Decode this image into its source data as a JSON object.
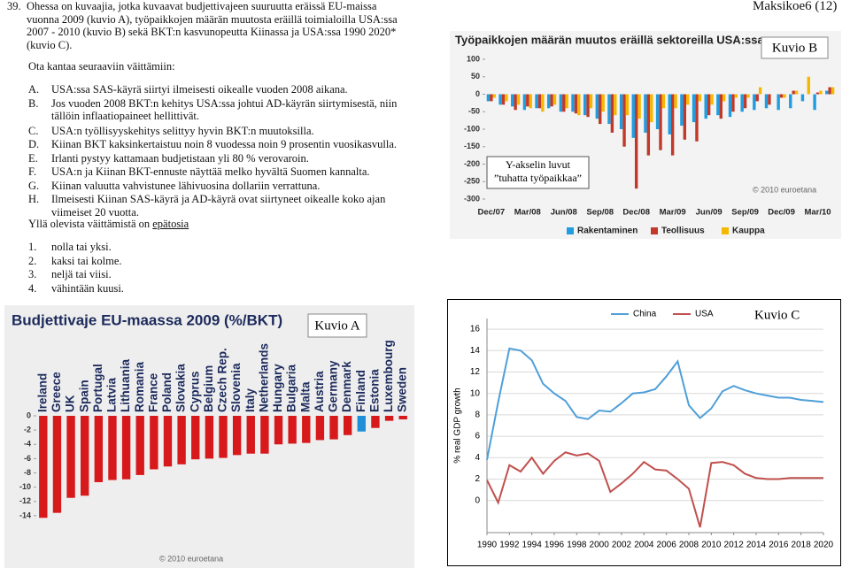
{
  "header": {
    "number": "39.",
    "exam": "Maksikoe6 (12)"
  },
  "question": "Ohessa on kuvaajia, jotka kuvaavat budjettivajeen suuruutta eräissä EU-maissa vuonna 2009 (kuvio A), työpaikkojen määrän muutosta eräillä toimialoilla USA:ssa 2007 - 2010 (kuvio B) sekä BKT:n kasvunopeutta Kiinassa ja USA:ssa 1990 2020* (kuvio C).",
  "instruction": "Ota kantaa seuraaviin väittämiin:",
  "statements": [
    {
      "letter": "A.",
      "text": "USA:ssa SAS-käyrä siirtyi ilmeisesti oikealle vuoden 2008 aikana."
    },
    {
      "letter": "B.",
      "text": "Jos vuoden 2008 BKT:n kehitys USA:ssa johtui AD-käyrän siirtymisestä, niin tällöin inflaatiopaineet hellittivät."
    },
    {
      "letter": "C.",
      "text": "USA:n työllisyyskehitys selittyy hyvin BKT:n muutoksilla."
    },
    {
      "letter": "D.",
      "text": "Kiinan BKT kaksinkertaistuu noin 8 vuodessa noin 9 prosentin vuosikasvulla."
    },
    {
      "letter": "E.",
      "text": "Irlanti pystyy kattamaan budjetistaan yli 80 % verovaroin."
    },
    {
      "letter": "F.",
      "text": "USA:n ja Kiinan BKT-ennuste näyttää melko hyvältä Suomen kannalta."
    },
    {
      "letter": "G.",
      "text": "Kiinan valuutta vahvistunee lähivuosina dollariin verrattuna."
    },
    {
      "letter": "H.",
      "text": "Ilmeisesti Kiinan SAS-käyrä ja AD-käyrä ovat siirtyneet oikealle koko ajan viimeiset 20 vuotta."
    }
  ],
  "prompt": "Yllä olevista väittämistä on",
  "prompt_emphasis": "epätosia",
  "answers": [
    {
      "number": "1.",
      "text": "nolla tai yksi."
    },
    {
      "number": "2.",
      "text": "kaksi tai kolme."
    },
    {
      "number": "3.",
      "text": "neljä tai viisi."
    },
    {
      "number": "4.",
      "text": "vähintään kuusi."
    }
  ],
  "chart_data": [
    {
      "type": "bar",
      "title": "Budjettivaje EU-maassa 2009 (%/BKT)",
      "label": "Kuvio A",
      "watermark": "© 2010 euroetana",
      "categories": [
        "Ireland",
        "Greece",
        "UK",
        "Spain",
        "Portugal",
        "Latvia",
        "Lithuania",
        "Romania",
        "France",
        "Poland",
        "Slovakia",
        "Cyprus",
        "Belgium",
        "Czech Rep.",
        "Slovenia",
        "Italy",
        "Netherlands",
        "Hungary",
        "Bulgaria",
        "Malta",
        "Austria",
        "Germany",
        "Denmark",
        "Finland",
        "Estonia",
        "Luxembourg",
        "Sweden"
      ],
      "values": [
        -14.3,
        -13.6,
        -11.5,
        -11.2,
        -9.3,
        -9.0,
        -8.9,
        -8.3,
        -7.5,
        -7.1,
        -6.8,
        -6.1,
        -6.0,
        -5.9,
        -5.5,
        -5.3,
        -5.3,
        -4.0,
        -3.9,
        -3.8,
        -3.4,
        -3.3,
        -2.7,
        -2.2,
        -1.7,
        -0.7,
        -0.5
      ],
      "colors": [
        "#d7191c",
        "#d7191c",
        "#d7191c",
        "#d7191c",
        "#d7191c",
        "#d7191c",
        "#d7191c",
        "#d7191c",
        "#d7191c",
        "#d7191c",
        "#d7191c",
        "#d7191c",
        "#d7191c",
        "#d7191c",
        "#d7191c",
        "#d7191c",
        "#d7191c",
        "#d7191c",
        "#d7191c",
        "#d7191c",
        "#d7191c",
        "#d7191c",
        "#d7191c",
        "#1f8fd8",
        "#d7191c",
        "#d7191c",
        "#d7191c"
      ],
      "ylim": [
        -16,
        0
      ],
      "yticks": [
        0,
        -2,
        -4,
        -6,
        -8,
        -10,
        -12,
        -14
      ]
    },
    {
      "type": "bar",
      "title": "Työpaikkojen määrän muutos eräillä sektoreilla USA:ssa",
      "label": "Kuvio B",
      "watermark": "© 2010 euroetana",
      "note": [
        "Y-akselin luvut",
        "”tuhatta työpaikkaa”"
      ],
      "categories": [
        "Dec/07",
        null,
        null,
        "Mar/08",
        null,
        null,
        "Jun/08",
        null,
        null,
        "Sep/08",
        null,
        null,
        "Dec/08",
        null,
        null,
        "Mar/09",
        null,
        null,
        "Jun/09",
        null,
        null,
        "Sep/09",
        null,
        null,
        "Dec/09",
        null,
        null,
        "Mar/10",
        null
      ],
      "series": [
        {
          "name": "Rakentaminen",
          "color": "#1f9de0",
          "values": [
            -20,
            -30,
            -35,
            -45,
            -40,
            -40,
            -50,
            -50,
            -60,
            -70,
            -85,
            -100,
            -125,
            -110,
            -100,
            -115,
            -90,
            -80,
            -70,
            -60,
            -65,
            -50,
            -45,
            -40,
            -45,
            -40,
            -20,
            -45,
            10
          ]
        },
        {
          "name": "Teollisuus",
          "color": "#c0392b",
          "values": [
            -20,
            -30,
            -45,
            -35,
            -40,
            -35,
            -50,
            -55,
            -65,
            -85,
            -110,
            -150,
            -270,
            -175,
            -160,
            -175,
            -130,
            -135,
            -60,
            -70,
            -50,
            -40,
            -20,
            -30,
            -10,
            10,
            0,
            5,
            20
          ]
        },
        {
          "name": "Kauppa",
          "color": "#f5b800",
          "values": [
            -10,
            -20,
            -30,
            -40,
            -50,
            -30,
            -40,
            -60,
            -40,
            -50,
            -60,
            -60,
            -70,
            -80,
            -40,
            -40,
            -30,
            -20,
            -30,
            -20,
            -10,
            -10,
            20,
            0,
            -10,
            10,
            50,
            10,
            20
          ]
        }
      ],
      "ylim": [
        -300,
        100
      ],
      "yticks": [
        100,
        50,
        0,
        -50,
        -100,
        -150,
        -200,
        -250,
        -300
      ],
      "legend": "bottom"
    },
    {
      "type": "line",
      "label": "Kuvio C",
      "ylabel": "% real GDP growth",
      "x": [
        1990,
        1991,
        1992,
        1993,
        1994,
        1995,
        1996,
        1997,
        1998,
        1999,
        2000,
        2001,
        2002,
        2003,
        2004,
        2005,
        2006,
        2007,
        2008,
        2009,
        2010,
        2011,
        2012,
        2013,
        2014,
        2015,
        2016,
        2017,
        2018,
        2019,
        2020
      ],
      "series": [
        {
          "name": "China",
          "color": "#4f9fd9",
          "values": [
            3.8,
            9.2,
            14.2,
            14.0,
            13.1,
            10.9,
            10.0,
            9.3,
            7.8,
            7.6,
            8.4,
            8.3,
            9.1,
            10.0,
            10.1,
            10.4,
            11.6,
            13.0,
            8.9,
            7.7,
            8.6,
            10.2,
            10.7,
            10.3,
            10.0,
            9.8,
            9.6,
            9.6,
            9.4,
            9.3,
            9.2
          ]
        },
        {
          "name": "USA",
          "color": "#c0504d",
          "values": [
            1.9,
            -0.2,
            3.3,
            2.7,
            4.0,
            2.5,
            3.7,
            4.5,
            4.2,
            4.4,
            3.7,
            0.8,
            1.6,
            2.5,
            3.6,
            2.9,
            2.8,
            2.0,
            1.1,
            -2.5,
            3.5,
            3.6,
            3.3,
            2.5,
            2.1,
            2.0,
            2.0,
            2.1,
            2.1,
            2.1,
            2.1
          ]
        }
      ],
      "xlim": [
        1990,
        2020
      ],
      "ylim": [
        -3,
        17
      ],
      "xticks": [
        1990,
        1992,
        1994,
        1996,
        1998,
        2000,
        2002,
        2004,
        2006,
        2008,
        2010,
        2012,
        2014,
        2016,
        2018,
        2020
      ],
      "yticks": [
        0,
        2,
        4,
        6,
        8,
        10,
        12,
        14,
        16
      ],
      "grid": true,
      "legend": "top"
    }
  ]
}
